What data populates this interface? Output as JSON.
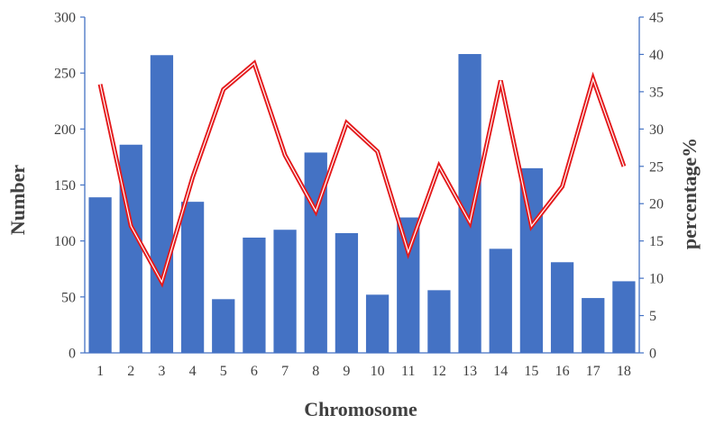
{
  "chart_data": {
    "type": "bar",
    "title": "",
    "xlabel": "Chromosome",
    "ylabel": "Number",
    "y2label": "percentage%",
    "categories": [
      "1",
      "2",
      "3",
      "4",
      "5",
      "6",
      "7",
      "8",
      "9",
      "10",
      "11",
      "12",
      "13",
      "14",
      "15",
      "16",
      "17",
      "18"
    ],
    "ylim": [
      0,
      300
    ],
    "y_ticks": [
      0,
      50,
      100,
      150,
      200,
      250,
      300
    ],
    "y2lim": [
      0,
      45
    ],
    "y2_ticks": [
      0,
      5,
      10,
      15,
      20,
      25,
      30,
      35,
      40,
      45
    ],
    "grid": false,
    "legend": "none",
    "series": [
      {
        "type": "bar",
        "axis": "left",
        "color": "#4472c4",
        "values": [
          139,
          186,
          266,
          135,
          48,
          103,
          110,
          179,
          107,
          52,
          121,
          56,
          267,
          93,
          165,
          81,
          49,
          64
        ]
      },
      {
        "type": "line",
        "axis": "right",
        "color": "#e41a1c",
        "values": [
          36.0,
          17.0,
          9.5,
          23.5,
          35.3,
          38.8,
          26.5,
          19.0,
          30.8,
          27.0,
          13.5,
          25.0,
          17.5,
          36.5,
          17.0,
          22.3,
          36.7,
          25.0
        ]
      }
    ]
  }
}
